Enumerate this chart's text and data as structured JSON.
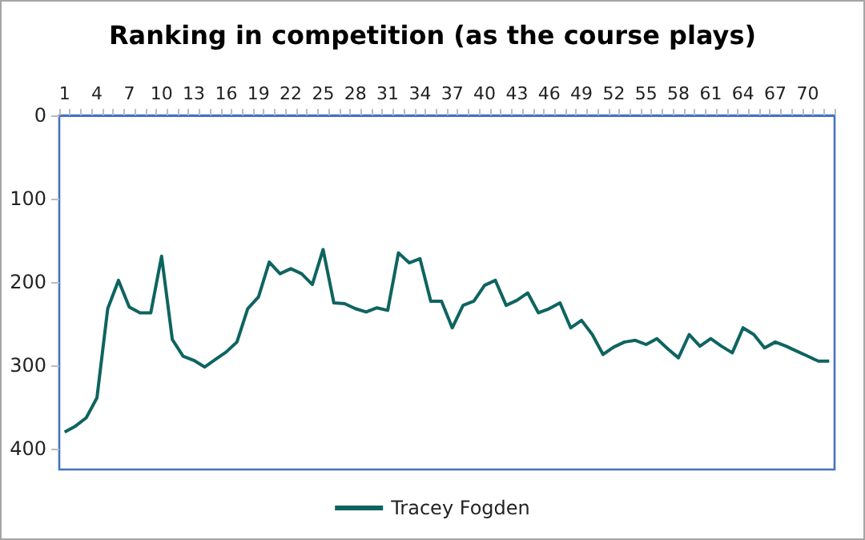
{
  "chart_data": {
    "type": "line",
    "title": "Ranking in competition (as the course plays)",
    "categories": [
      "1",
      null,
      null,
      "4",
      null,
      null,
      "7",
      null,
      null,
      "10",
      null,
      null,
      "13",
      null,
      null,
      "16",
      null,
      null,
      "19",
      null,
      null,
      "22",
      null,
      null,
      "25",
      null,
      null,
      "28",
      null,
      null,
      "31",
      null,
      null,
      "34",
      null,
      null,
      "37",
      null,
      null,
      "40",
      null,
      null,
      "43",
      null,
      null,
      "46",
      null,
      null,
      "49",
      null,
      null,
      "52",
      null,
      null,
      "55",
      null,
      null,
      "58",
      null,
      null,
      "61",
      null,
      null,
      "64",
      null,
      null,
      "67",
      null,
      null,
      "70",
      null,
      null
    ],
    "series": [
      {
        "name": "Tracey Fogden",
        "color": "#0e6460",
        "values": [
          380,
          373,
          363,
          339,
          232,
          198,
          230,
          237,
          237,
          169,
          269,
          289,
          294,
          302,
          293,
          284,
          272,
          232,
          218,
          176,
          190,
          184,
          190,
          203,
          161,
          225,
          226,
          232,
          236,
          231,
          234,
          165,
          177,
          172,
          223,
          223,
          255,
          228,
          223,
          204,
          198,
          228,
          222,
          213,
          237,
          232,
          225,
          255,
          246,
          263,
          287,
          278,
          272,
          270,
          275,
          268,
          280,
          291,
          263,
          277,
          268,
          277,
          285,
          255,
          263,
          279,
          272,
          277,
          283,
          289,
          295,
          295
        ]
      }
    ],
    "ylim": [
      425,
      0
    ],
    "yticks": [
      0,
      100,
      200,
      300,
      400
    ],
    "grid": false,
    "legend": "bottom",
    "marker": "none",
    "line_style": "solid"
  }
}
